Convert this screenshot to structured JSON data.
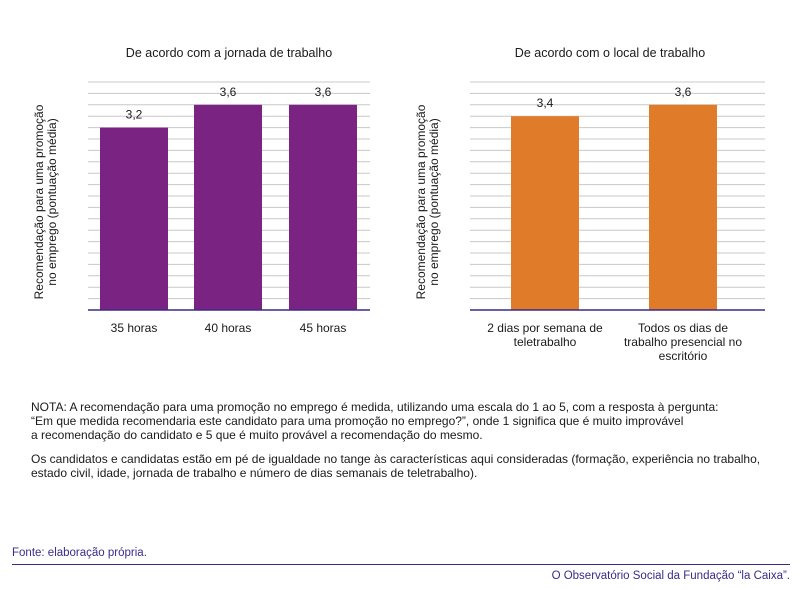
{
  "chart_data": [
    {
      "type": "bar",
      "title": "De acordo com a jornada de trabalho",
      "ylabel": "Recomendação para uma promoção no emprego (pontuação média)",
      "categories": [
        "35 horas",
        "40 horas",
        "45 horas"
      ],
      "values": [
        3.2,
        3.6,
        3.6
      ],
      "value_labels": [
        "3,2",
        "3,6",
        "3,6"
      ],
      "ylim": [
        0,
        4
      ],
      "grid": true,
      "color": "#7b2383"
    },
    {
      "type": "bar",
      "title": "De acordo com o local de trabalho",
      "ylabel": "Recomendação para uma promoção no emprego (pontuação média)",
      "categories": [
        "2 dias por semana de teletrabalho",
        "Todos os dias de trabalho presencial no escritório"
      ],
      "values": [
        3.4,
        3.6
      ],
      "value_labels": [
        "3,4",
        "3,6"
      ],
      "ylim": [
        0,
        4
      ],
      "grid": true,
      "color": "#e07b2a"
    }
  ],
  "note": {
    "line1": "NOTA: A recomendação para uma promoção no emprego é medida, utilizando uma escala do 1 ao 5, com a resposta à pergunta:",
    "line2": "“Em que medida recomendaria este candidato para uma promoção no emprego?”, onde 1 significa que é muito improvável",
    "line3": "a recomendação do candidato e 5 que é muito provável a recomendação do mesmo.",
    "para2": "Os candidatos e candidatas estão em pé de igualdade no tange às características aqui consideradas (formação, experiência no trabalho, estado civil, idade, jornada de trabalho e número de dias semanais de teletrabalho)."
  },
  "source": "Fonte: elaboração própria.",
  "footer": "O Observatório Social da Fundação “la Caixa”.",
  "colors": {
    "axis": "#3b2a8a",
    "grid": "#c8c8c8",
    "brand": "#3b2a8a"
  }
}
